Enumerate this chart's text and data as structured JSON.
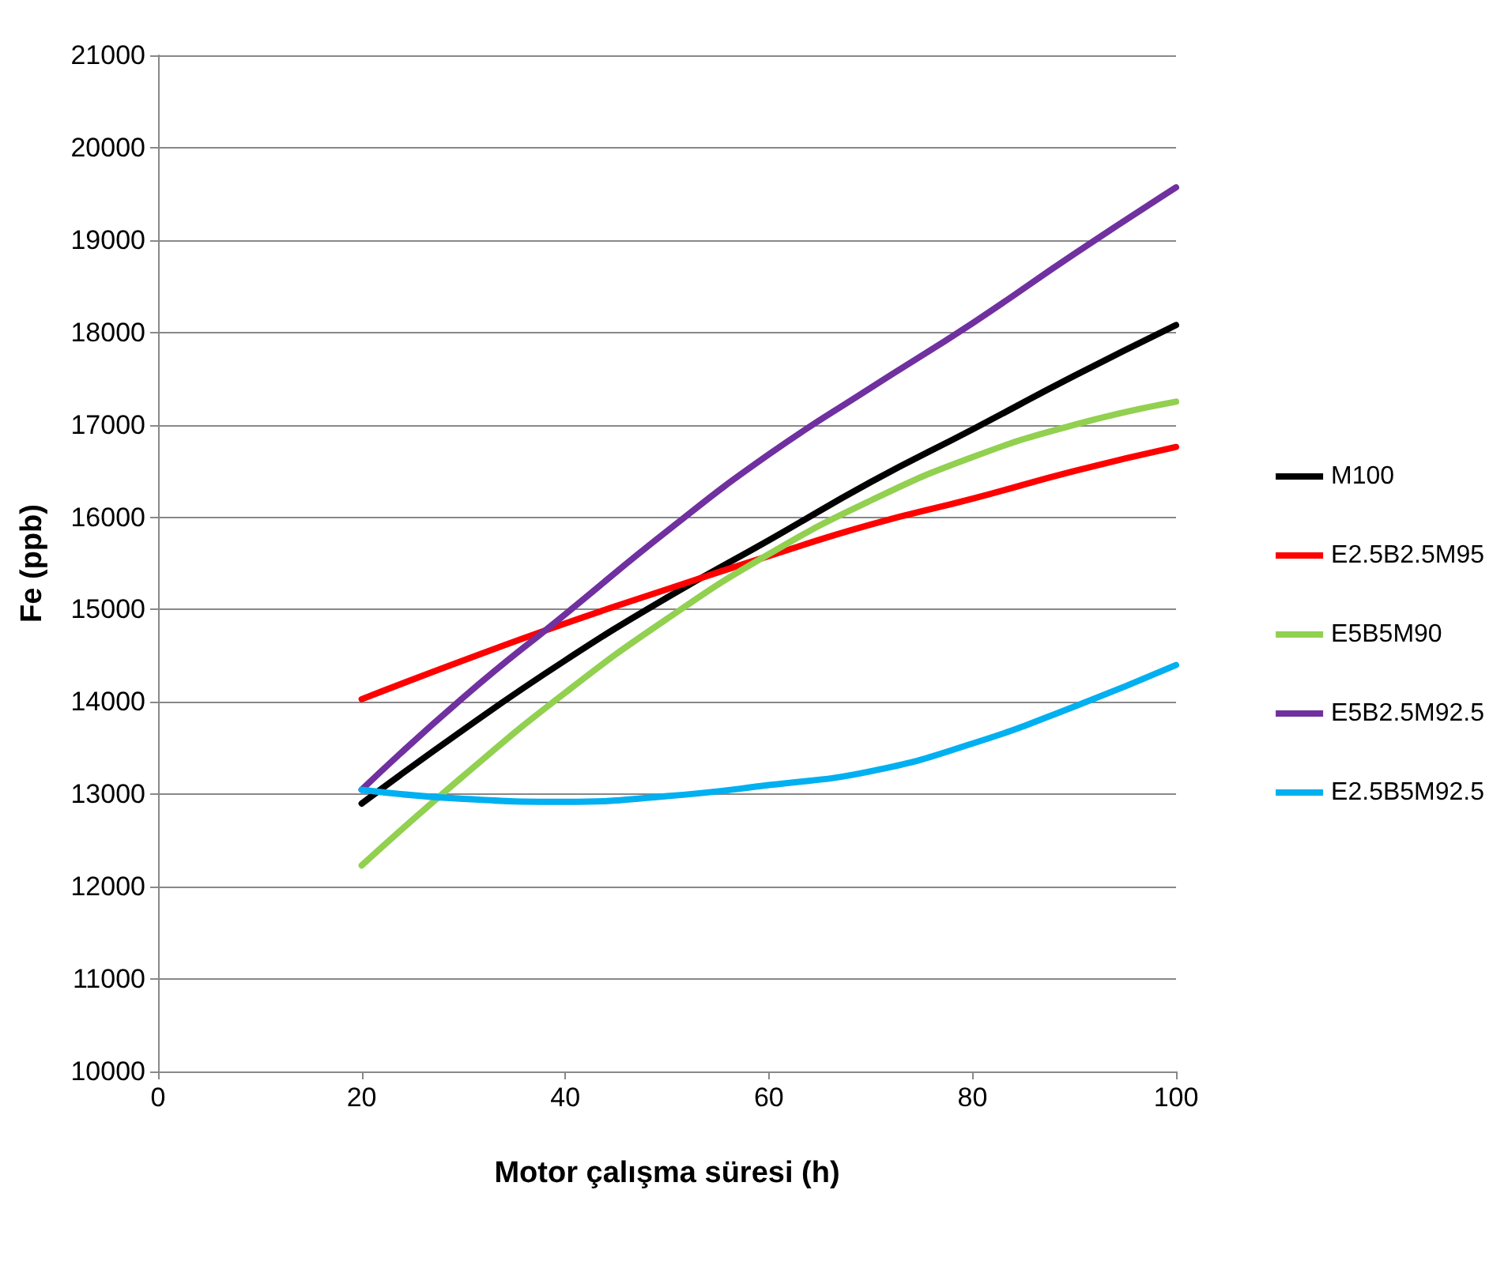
{
  "chart_data": {
    "type": "line",
    "xlabel": "Motor çalışma süresi (h)",
    "ylabel": "Fe (ppb)",
    "x": [
      20,
      30,
      40,
      50,
      60,
      70,
      80,
      90,
      100
    ],
    "series": [
      {
        "name": "M100",
        "color": "#000000",
        "values": [
          12900,
          13700,
          14450,
          15130,
          15750,
          16380,
          16950,
          17530,
          18080
        ]
      },
      {
        "name": "E2.5B2.5M95",
        "color": "#ff0000",
        "values": [
          14030,
          14450,
          14850,
          15220,
          15580,
          15920,
          16200,
          16500,
          16760
        ]
      },
      {
        "name": "E5B5M90",
        "color": "#92d050",
        "values": [
          12230,
          13200,
          14100,
          14900,
          15600,
          16180,
          16650,
          17000,
          17250
        ]
      },
      {
        "name": "E5B2.5M92.5",
        "color": "#7030a0",
        "values": [
          13050,
          14050,
          14950,
          15850,
          16680,
          17400,
          18100,
          18850,
          19570
        ]
      },
      {
        "name": "E2.5B5M92.5",
        "color": "#00b0f0",
        "values": [
          13050,
          12950,
          12920,
          12980,
          13100,
          13250,
          13550,
          13950,
          14400
        ]
      }
    ],
    "xlim": [
      0,
      100
    ],
    "xticks": [
      0,
      20,
      40,
      60,
      80,
      100
    ],
    "ylim": [
      10000,
      21000
    ],
    "yticks": [
      10000,
      11000,
      12000,
      13000,
      14000,
      15000,
      16000,
      17000,
      18000,
      19000,
      20000,
      21000
    ],
    "grid": "y",
    "legend": "right",
    "marker": "none",
    "line_style": "solid"
  }
}
